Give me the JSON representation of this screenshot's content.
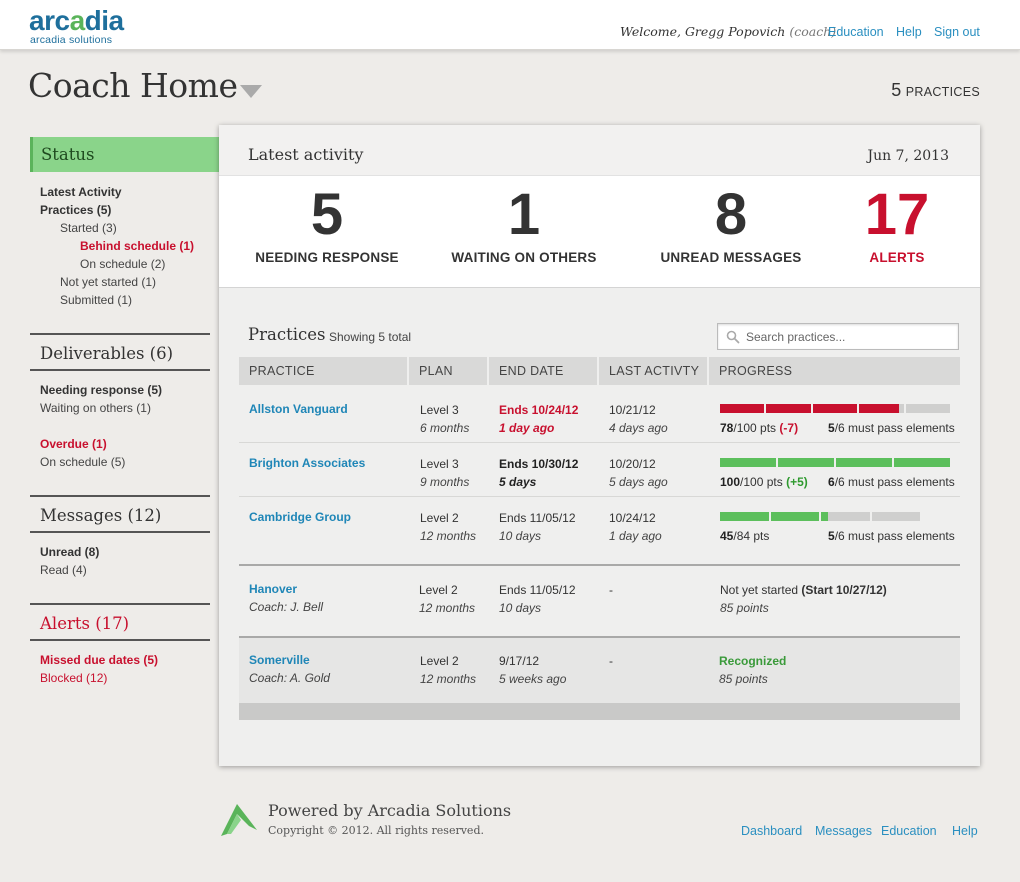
{
  "brand": {
    "logo_text": "arcadia",
    "logo_subtext": "arcadia solutions",
    "accent_blue": "#1e6f9c",
    "accent_green": "#5ab45a"
  },
  "header": {
    "welcome_prefix": "Welcome, Gregg Popovich",
    "welcome_role": "(coach)",
    "links": [
      "Education",
      "Help",
      "Sign out"
    ]
  },
  "page": {
    "title": "Coach Home",
    "practice_count": "5",
    "practice_count_label": "PRACTICES"
  },
  "sidebar": {
    "status": {
      "title": "Status",
      "items": [
        "Latest Activity",
        "Practices (5)",
        "Started (3)",
        "Behind schedule (1)",
        "On schedule (2)",
        "Not yet started (1)",
        "Submitted (1)"
      ]
    },
    "deliverables": {
      "title": "Deliverables (6)",
      "items": [
        "Needing response (5)",
        "Waiting on others (1)",
        "Overdue (1)",
        "On schedule (5)"
      ]
    },
    "messages": {
      "title": "Messages (12)",
      "items": [
        "Unread (8)",
        "Read (4)"
      ]
    },
    "alerts": {
      "title": "Alerts (17)",
      "items": [
        "Missed due dates (5)",
        "Blocked (12)"
      ]
    }
  },
  "activity": {
    "title": "Latest activity",
    "date": "Jun 7, 2013",
    "stats": [
      {
        "value": "5",
        "label": "NEEDING RESPONSE"
      },
      {
        "value": "1",
        "label": "WAITING ON OTHERS"
      },
      {
        "value": "8",
        "label": "UNREAD MESSAGES"
      },
      {
        "value": "17",
        "label": "ALERTS"
      }
    ]
  },
  "practices": {
    "title": "Practices",
    "subtitle": "Showing 5 total",
    "search_placeholder": "Search practices...",
    "columns": [
      "PRACTICE",
      "PLAN",
      "END DATE",
      "LAST ACTIVTY",
      "PROGRESS"
    ],
    "rows": [
      {
        "name": "Allston Vanguard",
        "plan": "Level 3",
        "plan_duration": "6 months",
        "end_date": "Ends 10/24/12",
        "end_note": "1 day ago",
        "last_activity": "10/21/12",
        "last_activity_ago": "4 days ago",
        "points": "78",
        "points_total": "/100 pts",
        "delta": "(-7)",
        "elements_passed": "5",
        "elements_text": "/6 must pass elements",
        "progress_fraction": 0.78,
        "status_color": "#c8102e"
      },
      {
        "name": "Brighton Associates",
        "plan": "Level 3",
        "plan_duration": "9 months",
        "end_date": "Ends 10/30/12",
        "end_note": "5 days",
        "last_activity": "10/20/12",
        "last_activity_ago": "5 days ago",
        "points": "100",
        "points_total": "/100 pts",
        "delta": "(+5)",
        "elements_passed": "6",
        "elements_text": "/6 must pass elements",
        "progress_fraction": 1.0,
        "status_color": "#5cbf5c"
      },
      {
        "name": "Cambridge Group",
        "plan": "Level 2",
        "plan_duration": "12 months",
        "end_date": "Ends 11/05/12",
        "end_note": "10 days",
        "last_activity": "10/24/12",
        "last_activity_ago": "1 day ago",
        "points": "45",
        "points_total": "/84 pts",
        "elements_passed": "5",
        "elements_text": "/6 must pass elements",
        "progress_fraction": 0.54,
        "status_color": "#5cbf5c"
      },
      {
        "name": "Hanover",
        "coach": "Coach: J. Bell",
        "plan": "Level 2",
        "plan_duration": "12 months",
        "end_date": "Ends 11/05/12",
        "end_note": "10 days",
        "last_activity": "-",
        "progress_text": "Not yet started",
        "progress_start": "(Start 10/27/12)",
        "progress_points": "85 points"
      },
      {
        "name": "Somerville",
        "coach": "Coach: A. Gold",
        "plan": "Level 2",
        "plan_duration": "12 months",
        "end_date": "9/17/12",
        "end_note": "5 weeks ago",
        "last_activity": "-",
        "progress_text": "Recognized",
        "progress_points": "85 points"
      }
    ]
  },
  "footer": {
    "powered_by": "Powered by Arcadia Solutions",
    "copyright": "Copyright © 2012. All rights reserved.",
    "links": [
      "Dashboard",
      "Messages",
      "Education",
      "Help"
    ]
  }
}
